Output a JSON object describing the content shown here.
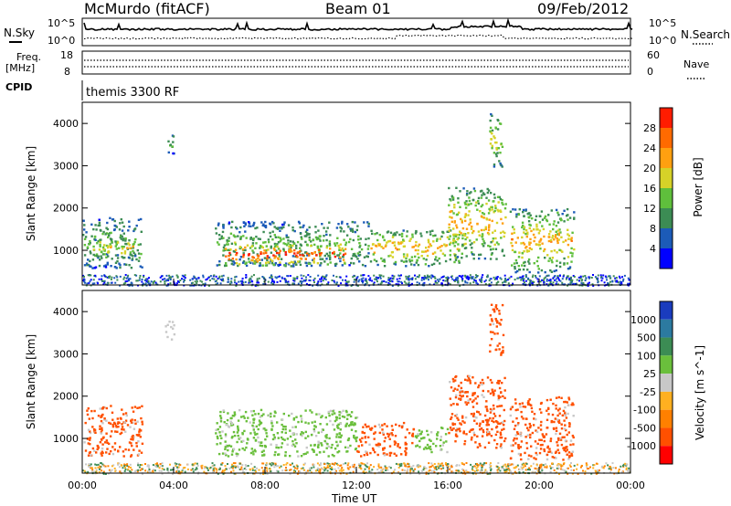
{
  "header": {
    "station": "McMurdo (fitACF)",
    "beam": "Beam 01",
    "date": "09/Feb/2012"
  },
  "status_panels": {
    "nsky_label": "N.Sky",
    "nsky_ticks": [
      "10^5",
      "10^0"
    ],
    "nsearch_label": "N.Search",
    "nsearch_ticks": [
      "10^5",
      "10^0"
    ],
    "freq_label": "Freq.",
    "freq_unit": "[MHz]",
    "freq_ticks": [
      "18",
      "8"
    ],
    "nave_label": "Nave",
    "nave_ticks": [
      "60",
      "0"
    ],
    "cpid_label": "CPID",
    "cpid_value": "themis 3300 RF"
  },
  "chart_data": [
    {
      "type": "heatmap",
      "name": "power",
      "ylabel": "Slant Range [km]",
      "xlabel": "",
      "ylim": [
        180,
        4500
      ],
      "yticks": [
        "1000",
        "2000",
        "3000",
        "4000"
      ],
      "colorbar_label": "Power [dB]",
      "colorbar_ticks": [
        "4",
        "8",
        "12",
        "16",
        "20",
        "24",
        "28"
      ],
      "colorbar_colors": [
        "#0000ff",
        "#1c5bb8",
        "#3c8c54",
        "#5fbf3c",
        "#d6d228",
        "#ffa010",
        "#ff6a00",
        "#ff1c00"
      ],
      "features": [
        {
          "t0": 0.0,
          "t1": 2.6,
          "r0": 600,
          "r1": 1800,
          "level": 3
        },
        {
          "t0": 0.4,
          "t1": 2.2,
          "r0": 850,
          "r1": 1300,
          "level": 5
        },
        {
          "t0": 5.8,
          "t1": 12.5,
          "r0": 650,
          "r1": 1700,
          "level": 3
        },
        {
          "t0": 6.2,
          "t1": 11.5,
          "r0": 650,
          "r1": 1200,
          "level": 7
        },
        {
          "t0": 12.5,
          "t1": 16.5,
          "r0": 650,
          "r1": 1500,
          "level": 5
        },
        {
          "t0": 16.0,
          "t1": 18.5,
          "r0": 800,
          "r1": 2500,
          "level": 5
        },
        {
          "t0": 18.7,
          "t1": 21.5,
          "r0": 500,
          "r1": 2000,
          "level": 5
        },
        {
          "t0": 3.6,
          "t1": 4.0,
          "r0": 3300,
          "r1": 3800,
          "level": 3
        },
        {
          "t0": 17.8,
          "t1": 18.4,
          "r0": 3000,
          "r1": 4300,
          "level": 4
        }
      ]
    },
    {
      "type": "heatmap",
      "name": "velocity",
      "ylabel": "Slant Range [km]",
      "xlabel": "Time UT",
      "ylim": [
        180,
        4500
      ],
      "yticks": [
        "1000",
        "2000",
        "3000",
        "4000"
      ],
      "xticks": [
        "00:00",
        "04:00",
        "08:00",
        "12:00",
        "16:00",
        "20:00",
        "00:00"
      ],
      "colorbar_label": "Velocity [m s^-1]",
      "colorbar_ticks": [
        "1000",
        "500",
        "100",
        "25",
        "-25",
        "-100",
        "-500",
        "-1000"
      ],
      "colorbar_colors": [
        "#1a3cbe",
        "#2c7aa0",
        "#3c8c54",
        "#6abf3c",
        "#c8c8c8",
        "#ffb020",
        "#ff8000",
        "#ff5000",
        "#ff0000"
      ],
      "features": [
        {
          "t0": 0.0,
          "t1": 2.6,
          "r0": 600,
          "r1": 1800,
          "level": "-500"
        },
        {
          "t0": 5.8,
          "t1": 12.0,
          "r0": 600,
          "r1": 1700,
          "level": "100"
        },
        {
          "t0": 12.0,
          "t1": 14.5,
          "r0": 600,
          "r1": 1400,
          "level": "-500"
        },
        {
          "t0": 14.5,
          "t1": 16.0,
          "r0": 700,
          "r1": 1300,
          "level": "100"
        },
        {
          "t0": 16.0,
          "t1": 18.5,
          "r0": 800,
          "r1": 2500,
          "level": "-500"
        },
        {
          "t0": 18.7,
          "t1": 21.5,
          "r0": 500,
          "r1": 2000,
          "level": "-500"
        },
        {
          "t0": 3.6,
          "t1": 4.0,
          "r0": 3300,
          "r1": 3800,
          "level": "25"
        },
        {
          "t0": 17.8,
          "t1": 18.4,
          "r0": 3000,
          "r1": 4300,
          "level": "-500"
        }
      ]
    }
  ]
}
